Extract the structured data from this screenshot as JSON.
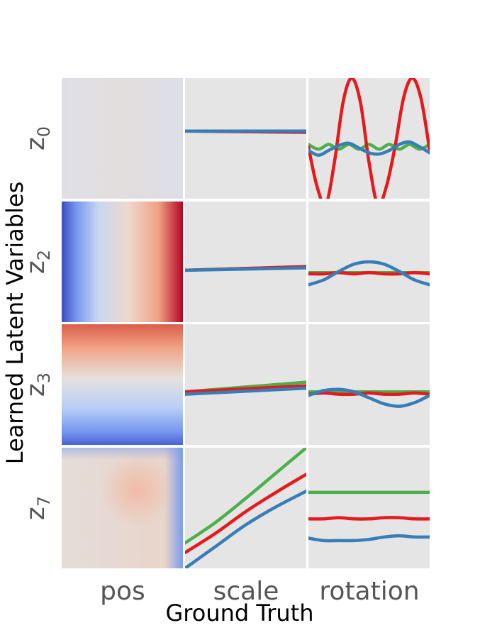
{
  "chart_data": {
    "type": "line",
    "xlabel": "Ground Truth",
    "ylabel": "Learned Latent Variables",
    "columns": [
      "pos",
      "scale",
      "rotation"
    ],
    "rows": [
      {
        "symbol": "z",
        "sub": "0"
      },
      {
        "symbol": "z",
        "sub": "2"
      },
      {
        "symbol": "z",
        "sub": "3"
      },
      {
        "symbol": "z",
        "sub": "7"
      }
    ],
    "series_colors": {
      "green": "#4daf4a",
      "red": "#e41a1c",
      "blue": "#377eb8"
    },
    "panel_background": "#e5e5e5",
    "pos_colormap": [
      "#3b4cc0",
      "#b40426"
    ],
    "pos_heatmaps": [
      {
        "row": "z0",
        "pattern": "near-constant"
      },
      {
        "row": "z2",
        "pattern": "varies left-to-right"
      },
      {
        "row": "z3",
        "pattern": "varies top-to-bottom"
      },
      {
        "row": "z7",
        "pattern": "near-constant with warm center"
      }
    ],
    "scale_lines": [
      {
        "row": "z0",
        "green": [
          0.56,
          0.56
        ],
        "red": [
          0.56,
          0.55
        ],
        "blue": [
          0.56,
          0.56
        ]
      },
      {
        "row": "z2",
        "green": [
          0.43,
          0.46
        ],
        "red": [
          0.43,
          0.46
        ],
        "blue": [
          0.43,
          0.45
        ]
      },
      {
        "row": "z3",
        "green": [
          0.44,
          0.52
        ],
        "red": [
          0.44,
          0.49
        ],
        "blue": [
          0.42,
          0.47
        ]
      },
      {
        "row": "z7",
        "green": [
          0.21,
          0.38,
          0.58,
          0.79,
          1.0
        ],
        "red": [
          0.13,
          0.29,
          0.47,
          0.63,
          0.78
        ],
        "blue": [
          0.0,
          0.18,
          0.36,
          0.51,
          0.64
        ]
      }
    ],
    "rotation_lines": [
      {
        "row": "z0",
        "green": [
          0.45,
          0.41,
          0.45,
          0.41,
          0.45,
          0.41,
          0.45,
          0.41,
          0.45,
          0.41,
          0.45,
          0.41,
          0.45
        ],
        "red": [
          0.43,
          0.1,
          -0.05,
          0.3,
          0.8,
          1.0,
          0.8,
          0.3,
          -0.05,
          0.1,
          0.43,
          0.84,
          1.0,
          0.83,
          0.4
        ],
        "blue": [
          0.4,
          0.36,
          0.4,
          0.44,
          0.46,
          0.42,
          0.38,
          0.37,
          0.4,
          0.45,
          0.47,
          0.43,
          0.38
        ]
      },
      {
        "row": "z2",
        "green": [
          0.41,
          0.41,
          0.41,
          0.41,
          0.41,
          0.41,
          0.41,
          0.41,
          0.41
        ],
        "red": [
          0.4,
          0.4,
          0.41,
          0.4,
          0.41,
          0.4,
          0.4,
          0.41,
          0.4
        ],
        "blue": [
          0.31,
          0.35,
          0.42,
          0.48,
          0.5,
          0.48,
          0.42,
          0.35,
          0.31
        ]
      },
      {
        "row": "z3",
        "green": [
          0.44,
          0.44,
          0.44,
          0.44,
          0.44,
          0.44,
          0.44,
          0.44,
          0.44
        ],
        "red": [
          0.42,
          0.43,
          0.42,
          0.42,
          0.43,
          0.42,
          0.42,
          0.43,
          0.42
        ],
        "blue": [
          0.41,
          0.45,
          0.46,
          0.44,
          0.39,
          0.34,
          0.32,
          0.35,
          0.41
        ]
      },
      {
        "row": "z7",
        "green": [
          0.63,
          0.63,
          0.63,
          0.63,
          0.63,
          0.63,
          0.63,
          0.63,
          0.63
        ],
        "red": [
          0.41,
          0.41,
          0.42,
          0.41,
          0.41,
          0.42,
          0.42,
          0.41,
          0.41
        ],
        "blue": [
          0.25,
          0.23,
          0.23,
          0.23,
          0.24,
          0.26,
          0.27,
          0.26,
          0.26
        ]
      }
    ]
  }
}
